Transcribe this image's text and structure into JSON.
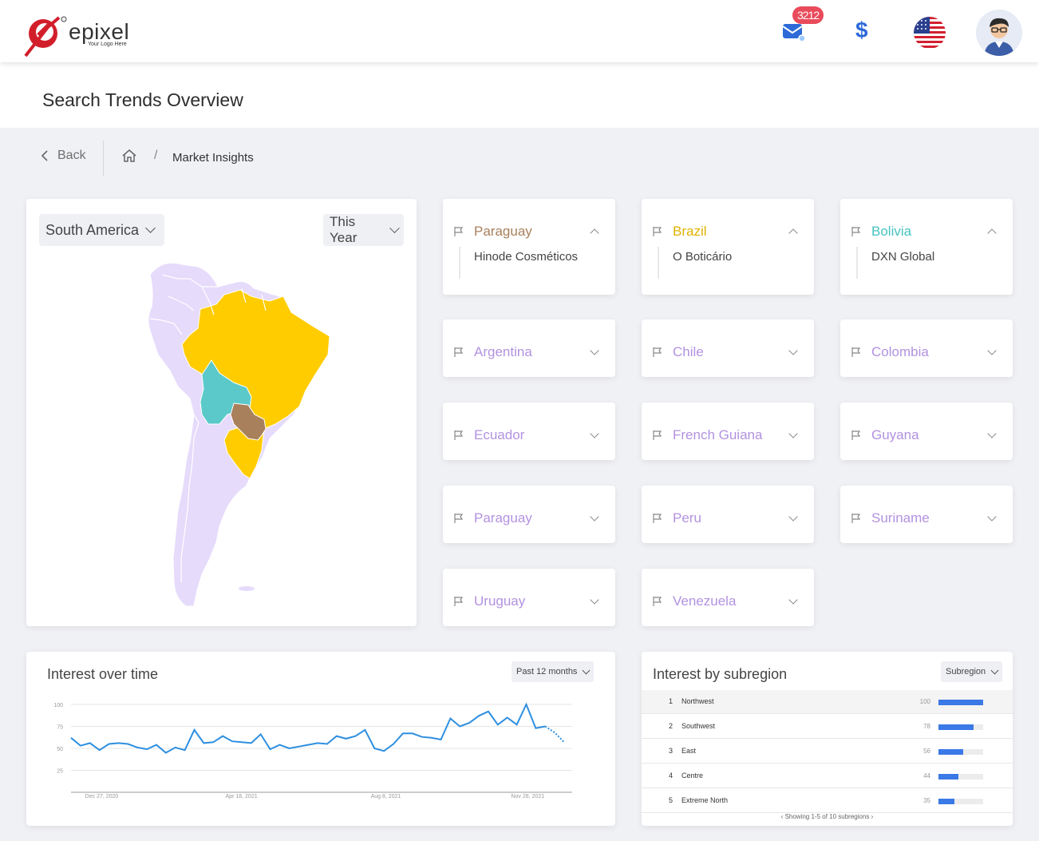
{
  "header": {
    "logo_text": "epixel",
    "logo_tagline": "Your Logo Here",
    "mail_badge": "3212",
    "currency_symbol": "$"
  },
  "page": {
    "title": "Search Trends Overview"
  },
  "breadcrumb": {
    "back_label": "Back",
    "separator": "/",
    "current": "Market Insights"
  },
  "map_panel": {
    "region_select": "South America",
    "period_select": "This Year",
    "highlighted": [
      {
        "country": "Brazil",
        "color": "#ffcc00"
      },
      {
        "country": "Bolivia",
        "color": "#5bc9c9"
      },
      {
        "country": "Paraguay",
        "color": "#a9805c"
      }
    ],
    "base_color": "#e6dbfb"
  },
  "countries": [
    {
      "name": "Paraguay",
      "color": "#a9805c",
      "expanded": true,
      "sub": "Hinode Cosméticos"
    },
    {
      "name": "Brazil",
      "color": "#e0b100",
      "expanded": true,
      "sub": "O Boticário"
    },
    {
      "name": "Bolivia",
      "color": "#48c2c2",
      "expanded": true,
      "sub": "DXN Global"
    },
    {
      "name": "Argentina",
      "color": "#b292e0",
      "expanded": false
    },
    {
      "name": "Chile",
      "color": "#b292e0",
      "expanded": false
    },
    {
      "name": "Colombia",
      "color": "#b292e0",
      "expanded": false
    },
    {
      "name": "Ecuador",
      "color": "#b292e0",
      "expanded": false
    },
    {
      "name": "French Guiana",
      "color": "#b292e0",
      "expanded": false
    },
    {
      "name": "Guyana",
      "color": "#b292e0",
      "expanded": false
    },
    {
      "name": "Paraguay",
      "color": "#b292e0",
      "expanded": false
    },
    {
      "name": "Peru",
      "color": "#b292e0",
      "expanded": false
    },
    {
      "name": "Suriname",
      "color": "#b292e0",
      "expanded": false
    },
    {
      "name": "Uruguay",
      "color": "#b292e0",
      "expanded": false
    },
    {
      "name": "Venezuela",
      "color": "#b292e0",
      "expanded": false
    }
  ],
  "interest_over_time": {
    "title": "Interest over time",
    "period_select": "Past 12 months"
  },
  "chart_data": {
    "type": "line",
    "title": "Interest over time",
    "x_tick_labels": [
      "Dec 27, 2020",
      "Apr 18, 2021",
      "Aug 8, 2021",
      "Nov 28, 2021"
    ],
    "y_ticks": [
      25,
      50,
      75,
      100
    ],
    "ylim": [
      0,
      100
    ],
    "grid": true,
    "color": "#2e8fe0",
    "values": [
      62,
      53,
      56,
      48,
      55,
      56,
      55,
      51,
      49,
      54,
      45,
      51,
      48,
      71,
      56,
      57,
      64,
      58,
      57,
      56,
      66,
      49,
      54,
      50,
      52,
      54,
      56,
      55,
      64,
      61,
      64,
      71,
      50,
      47,
      55,
      67,
      67,
      63,
      62,
      60,
      84,
      75,
      79,
      87,
      92,
      77,
      85,
      77,
      100,
      73,
      75
    ],
    "partial_values": [
      75,
      68,
      57
    ],
    "partial_note": "last points dotted (partial data)"
  },
  "interest_by_subregion": {
    "title": "Interest by subregion",
    "select": "Subregion",
    "rows": [
      {
        "rank": "1",
        "name": "Northwest",
        "value": 100
      },
      {
        "rank": "2",
        "name": "Southwest",
        "value": 78
      },
      {
        "rank": "3",
        "name": "East",
        "value": 56
      },
      {
        "rank": "4",
        "name": "Centre",
        "value": 44
      },
      {
        "rank": "5",
        "name": "Extreme North",
        "value": 35
      }
    ],
    "footer": "Showing 1-5 of 10 subregions",
    "bar_color": "#3a79e6"
  }
}
